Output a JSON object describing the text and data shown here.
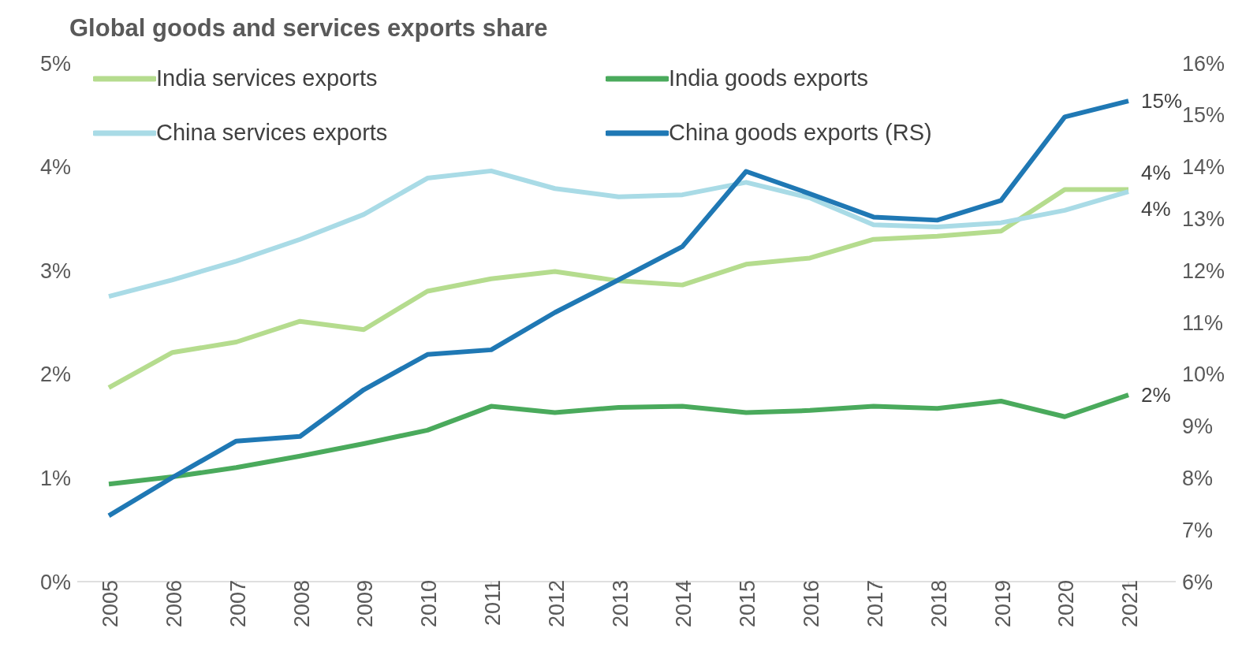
{
  "chart_data": {
    "type": "line",
    "title": "Global goods and services exports share",
    "categories": [
      "2005",
      "2006",
      "2007",
      "2008",
      "2009",
      "2010",
      "2011",
      "2012",
      "2013",
      "2014",
      "2015",
      "2016",
      "2017",
      "2018",
      "2019",
      "2020",
      "2021"
    ],
    "series": [
      {
        "name": "India services exports",
        "color": "#b5dc8e",
        "values": [
          1.87,
          2.21,
          2.31,
          2.51,
          2.43,
          2.8,
          2.92,
          2.99,
          2.9,
          2.86,
          3.06,
          3.12,
          3.3,
          3.33,
          3.38,
          3.78,
          3.78
        ],
        "value_labels": [
          null,
          null,
          null,
          null,
          null,
          null,
          null,
          null,
          null,
          null,
          null,
          null,
          null,
          null,
          null,
          null,
          "4%"
        ]
      },
      {
        "name": "India goods exports",
        "color": "#4aaa5c",
        "values": [
          0.94,
          1.01,
          1.1,
          1.21,
          1.33,
          1.46,
          1.69,
          1.63,
          1.68,
          1.69,
          1.63,
          1.65,
          1.69,
          1.67,
          1.74,
          1.59,
          1.8
        ],
        "value_labels": [
          null,
          null,
          null,
          null,
          null,
          null,
          null,
          null,
          null,
          null,
          null,
          null,
          null,
          null,
          null,
          null,
          "2%"
        ]
      },
      {
        "name": "China services exports",
        "color": "#a9dbe6",
        "values": [
          2.75,
          2.91,
          3.09,
          3.3,
          3.54,
          3.89,
          3.96,
          3.79,
          3.71,
          3.73,
          3.85,
          3.7,
          3.44,
          3.42,
          3.46,
          3.58,
          3.76
        ],
        "value_labels": [
          null,
          null,
          null,
          null,
          null,
          null,
          null,
          null,
          null,
          null,
          null,
          null,
          null,
          null,
          null,
          null,
          "4%"
        ]
      },
      {
        "name": "China goods exports (RS)",
        "color": "#1f78b4",
        "axis": "y2",
        "values": [
          7.27,
          8.01,
          8.71,
          8.8,
          9.7,
          10.38,
          10.47,
          11.19,
          11.82,
          12.46,
          13.91,
          13.48,
          13.03,
          12.97,
          13.35,
          14.96,
          15.27
        ],
        "value_labels": [
          null,
          null,
          null,
          null,
          null,
          null,
          null,
          null,
          null,
          null,
          null,
          null,
          null,
          null,
          null,
          null,
          "15%"
        ]
      }
    ],
    "ylim": [
      0,
      5
    ],
    "yticks": [
      {
        "value": 0,
        "label": "0%"
      },
      {
        "value": 1,
        "label": "1%"
      },
      {
        "value": 2,
        "label": "2%"
      },
      {
        "value": 3,
        "label": "3%"
      },
      {
        "value": 4,
        "label": "4%"
      },
      {
        "value": 5,
        "label": "5%"
      }
    ],
    "y2lim": [
      6,
      16
    ],
    "y2ticks": [
      {
        "value": 6,
        "label": "6%"
      },
      {
        "value": 7,
        "label": "7%"
      },
      {
        "value": 8,
        "label": "8%"
      },
      {
        "value": 9,
        "label": "9%"
      },
      {
        "value": 10,
        "label": "10%"
      },
      {
        "value": 11,
        "label": "11%"
      },
      {
        "value": 12,
        "label": "12%"
      },
      {
        "value": 13,
        "label": "13%"
      },
      {
        "value": 14,
        "label": "14%"
      },
      {
        "value": 15,
        "label": "15%"
      },
      {
        "value": 16,
        "label": "16%"
      }
    ],
    "legend": "top left"
  }
}
